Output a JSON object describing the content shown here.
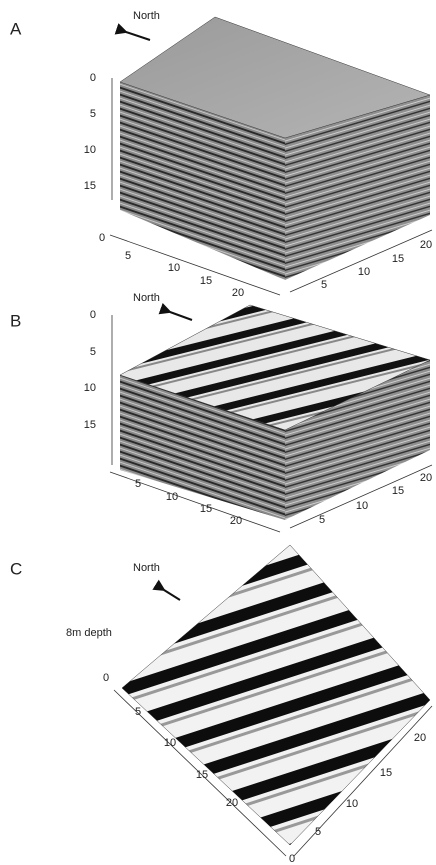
{
  "panels": [
    {
      "label": "A",
      "north": "North",
      "depth_ticks": [
        0,
        5,
        10,
        15
      ],
      "left_ticks": [
        0,
        5,
        10,
        15,
        20
      ],
      "right_ticks": [
        5,
        10,
        15,
        20
      ]
    },
    {
      "label": "B",
      "north": "North",
      "depth_ticks": [
        0,
        5,
        10,
        15
      ],
      "left_ticks": [
        5,
        10,
        15,
        20
      ],
      "right_ticks": [
        5,
        10,
        15,
        20
      ]
    },
    {
      "label": "C",
      "north": "North",
      "annotation": "8m depth",
      "left_ticks": [
        0,
        5,
        10,
        15,
        20
      ],
      "right_ticks": [
        0,
        5,
        10,
        15,
        20
      ]
    }
  ]
}
